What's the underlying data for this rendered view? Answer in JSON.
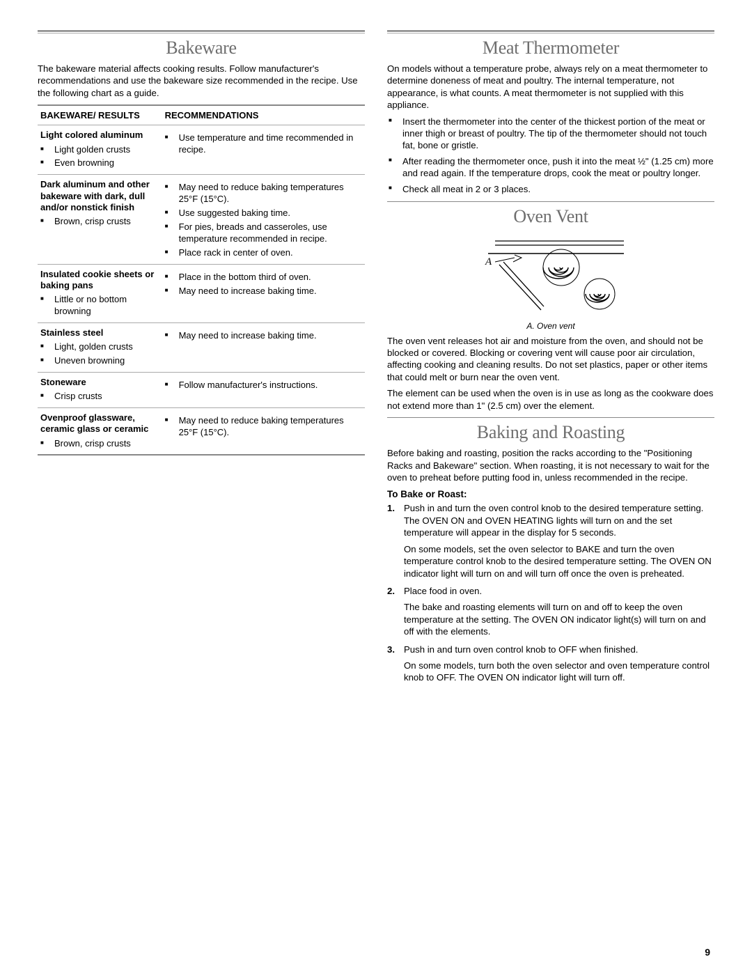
{
  "page_number": "9",
  "left": {
    "title": "Bakeware",
    "intro": "The bakeware material affects cooking results. Follow manufacturer's recommendations and use the bakeware size recommended in the recipe. Use the following chart as a guide.",
    "header_left": "BAKEWARE/ RESULTS",
    "header_right": "RECOMMENDATIONS",
    "rows": [
      {
        "name": "Light colored aluminum",
        "results": [
          "Light golden crusts",
          "Even browning"
        ],
        "recs": [
          "Use temperature and time recommended in recipe."
        ]
      },
      {
        "name": "Dark aluminum and other bakeware with dark, dull and/or nonstick finish",
        "results": [
          "Brown, crisp crusts"
        ],
        "recs": [
          "May need to reduce baking temperatures 25°F (15°C).",
          "Use suggested baking time.",
          "For pies, breads and casseroles, use temperature recommended in recipe.",
          "Place rack in center of oven."
        ]
      },
      {
        "name": "Insulated cookie sheets or baking pans",
        "results": [
          "Little or no bottom browning"
        ],
        "recs": [
          "Place in the bottom third of oven.",
          "May need to increase baking time."
        ]
      },
      {
        "name": "Stainless steel",
        "results": [
          "Light, golden crusts",
          "Uneven browning"
        ],
        "recs": [
          "May need to increase baking time."
        ]
      },
      {
        "name": "Stoneware",
        "results": [
          "Crisp crusts"
        ],
        "recs": [
          "Follow manufacturer's instructions."
        ]
      },
      {
        "name": "Ovenproof glassware, ceramic glass or ceramic",
        "results": [
          "Brown, crisp crusts"
        ],
        "recs": [
          "May need to reduce baking temperatures 25°F (15°C)."
        ]
      }
    ]
  },
  "right": {
    "meat": {
      "title": "Meat Thermometer",
      "intro": "On models without a temperature probe, always rely on a meat thermometer to determine doneness of meat and poultry. The internal temperature, not appearance, is what counts. A meat thermometer is not supplied with this appliance.",
      "bullets": [
        "Insert the thermometer into the center of the thickest portion of the meat or inner thigh or breast of poultry. The tip of the thermometer should not touch fat, bone or gristle.",
        "After reading the thermometer once, push it into the meat ½\" (1.25 cm) more and read again. If the temperature drops, cook the meat or poultry longer.",
        "Check all meat in 2 or 3 places."
      ]
    },
    "vent": {
      "title": "Oven Vent",
      "label_A": "A",
      "caption": "A. Oven vent",
      "p1": "The oven vent releases hot air and moisture from the oven, and should not be blocked or covered. Blocking or covering vent will cause poor air circulation, affecting cooking and cleaning results. Do not set plastics, paper or other items that could melt or burn near the oven vent.",
      "p2": "The element can be used when the oven is in use as long as the cookware does not extend more than 1\" (2.5 cm) over the element."
    },
    "baking": {
      "title": "Baking and Roasting",
      "intro": "Before baking and roasting, position the racks according to the \"Positioning Racks and Bakeware\" section. When roasting, it is not necessary to wait for the oven to preheat before putting food in, unless recommended in the recipe.",
      "subhead": "To Bake or Roast:",
      "steps": [
        {
          "main": "Push in and turn the oven control knob to the desired temperature setting. The OVEN ON and OVEN HEATING lights will turn on and the set temperature will appear in the display for 5 seconds.",
          "extra": "On some models, set the oven selector to BAKE and turn the oven temperature control knob to the desired temperature setting. The OVEN ON indicator light will turn on and will turn off once the oven is preheated."
        },
        {
          "main": "Place food in oven.",
          "extra": "The bake and roasting elements will turn on and off to keep the oven temperature at the setting. The OVEN ON indicator light(s) will turn on and off with the elements."
        },
        {
          "main": "Push in and turn oven control knob to OFF when finished.",
          "extra": "On some models, turn both the oven selector and oven temperature control knob to OFF. The OVEN ON indicator light will turn off."
        }
      ]
    }
  }
}
